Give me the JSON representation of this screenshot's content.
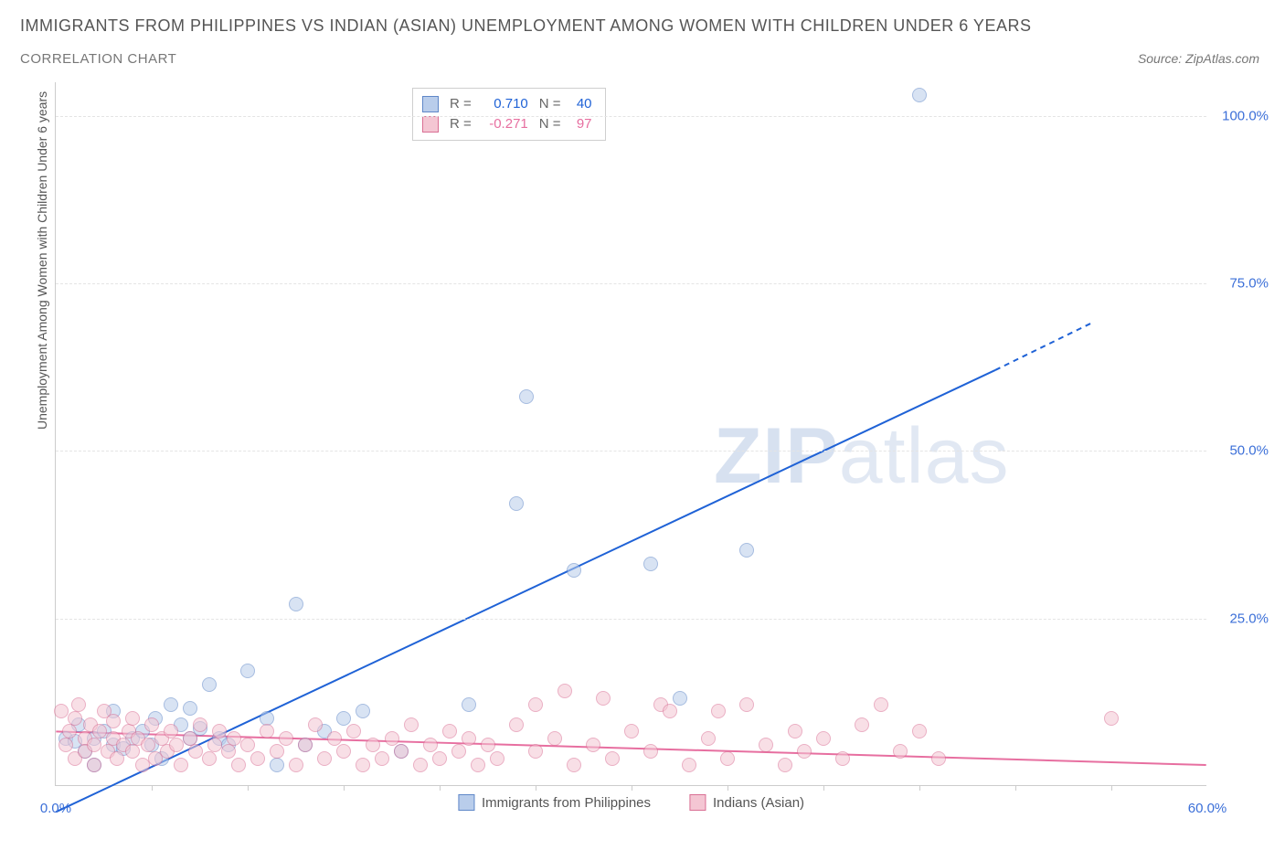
{
  "title": "IMMIGRANTS FROM PHILIPPINES VS INDIAN (ASIAN) UNEMPLOYMENT AMONG WOMEN WITH CHILDREN UNDER 6 YEARS",
  "subtitle": "CORRELATION CHART",
  "source": "Source: ZipAtlas.com",
  "yaxis_label": "Unemployment Among Women with Children Under 6 years",
  "watermark": {
    "part1": "ZIP",
    "part2": "atlas"
  },
  "chart": {
    "type": "scatter",
    "xlim": [
      0,
      60
    ],
    "ylim": [
      0,
      105
    ],
    "x_ticks": [
      0,
      60
    ],
    "x_tick_labels": [
      "0.0%",
      "60.0%"
    ],
    "x_minor_ticks": [
      5,
      10,
      15,
      20,
      25,
      30,
      35,
      40,
      45,
      50,
      55
    ],
    "y_ticks": [
      25,
      50,
      75,
      100
    ],
    "y_tick_labels": [
      "25.0%",
      "50.0%",
      "75.0%",
      "100.0%"
    ],
    "grid_color": "#e4e4e4",
    "axis_color": "#cccccc",
    "background_color": "#ffffff",
    "tick_label_color": "#3b6fd8",
    "marker_radius": 8,
    "marker_stroke_width": 1.2,
    "series": [
      {
        "id": "philippines",
        "label": "Immigrants from Philippines",
        "fill": "#b9cdeb",
        "stroke": "#5f87c8",
        "fill_opacity": 0.55,
        "stats": {
          "R": "0.710",
          "N": "40"
        },
        "trend": {
          "color": "#1f62d6",
          "width": 2,
          "x1": 0,
          "y1": -4,
          "x2": 49,
          "y2": 62,
          "dash_from_x": 49,
          "x3": 54,
          "y3": 69
        },
        "points": [
          [
            0.5,
            7
          ],
          [
            1,
            6.5
          ],
          [
            1.2,
            9
          ],
          [
            1.5,
            5
          ],
          [
            2,
            7
          ],
          [
            2,
            3
          ],
          [
            2.5,
            8
          ],
          [
            3,
            11
          ],
          [
            3,
            6
          ],
          [
            3.5,
            5.5
          ],
          [
            4,
            7
          ],
          [
            4.5,
            8
          ],
          [
            5,
            6
          ],
          [
            5.2,
            10
          ],
          [
            5.5,
            4
          ],
          [
            6,
            12
          ],
          [
            6.5,
            9
          ],
          [
            7,
            7
          ],
          [
            7,
            11.5
          ],
          [
            7.5,
            8.5
          ],
          [
            8,
            15
          ],
          [
            8.5,
            7
          ],
          [
            9,
            6
          ],
          [
            10,
            17
          ],
          [
            11,
            10
          ],
          [
            11.5,
            3
          ],
          [
            12.5,
            27
          ],
          [
            13,
            6
          ],
          [
            14,
            8
          ],
          [
            15,
            10
          ],
          [
            16,
            11
          ],
          [
            18,
            5
          ],
          [
            21.5,
            12
          ],
          [
            24,
            42
          ],
          [
            24.5,
            58
          ],
          [
            27,
            32
          ],
          [
            31,
            33
          ],
          [
            32.5,
            13
          ],
          [
            36,
            35
          ],
          [
            45,
            103
          ]
        ]
      },
      {
        "id": "indians",
        "label": "Indians (Asian)",
        "fill": "#f4c6d3",
        "stroke": "#d96f94",
        "fill_opacity": 0.55,
        "stats": {
          "R": "-0.271",
          "N": "97"
        },
        "trend": {
          "color": "#e76fa0",
          "width": 2,
          "x1": 0,
          "y1": 8,
          "x2": 60,
          "y2": 3
        },
        "points": [
          [
            0.3,
            11
          ],
          [
            0.5,
            6
          ],
          [
            0.7,
            8
          ],
          [
            1,
            10
          ],
          [
            1,
            4
          ],
          [
            1.2,
            12
          ],
          [
            1.5,
            7
          ],
          [
            1.5,
            5
          ],
          [
            1.8,
            9
          ],
          [
            2,
            6
          ],
          [
            2,
            3
          ],
          [
            2.3,
            8
          ],
          [
            2.5,
            11
          ],
          [
            2.7,
            5
          ],
          [
            3,
            7
          ],
          [
            3,
            9.5
          ],
          [
            3.2,
            4
          ],
          [
            3.5,
            6
          ],
          [
            3.8,
            8
          ],
          [
            4,
            5
          ],
          [
            4,
            10
          ],
          [
            4.3,
            7
          ],
          [
            4.5,
            3
          ],
          [
            4.8,
            6
          ],
          [
            5,
            9
          ],
          [
            5.2,
            4
          ],
          [
            5.5,
            7
          ],
          [
            5.8,
            5
          ],
          [
            6,
            8
          ],
          [
            6.3,
            6
          ],
          [
            6.5,
            3
          ],
          [
            7,
            7
          ],
          [
            7.3,
            5
          ],
          [
            7.5,
            9
          ],
          [
            8,
            4
          ],
          [
            8.3,
            6
          ],
          [
            8.5,
            8
          ],
          [
            9,
            5
          ],
          [
            9.3,
            7
          ],
          [
            9.5,
            3
          ],
          [
            10,
            6
          ],
          [
            10.5,
            4
          ],
          [
            11,
            8
          ],
          [
            11.5,
            5
          ],
          [
            12,
            7
          ],
          [
            12.5,
            3
          ],
          [
            13,
            6
          ],
          [
            13.5,
            9
          ],
          [
            14,
            4
          ],
          [
            14.5,
            7
          ],
          [
            15,
            5
          ],
          [
            15.5,
            8
          ],
          [
            16,
            3
          ],
          [
            16.5,
            6
          ],
          [
            17,
            4
          ],
          [
            17.5,
            7
          ],
          [
            18,
            5
          ],
          [
            18.5,
            9
          ],
          [
            19,
            3
          ],
          [
            19.5,
            6
          ],
          [
            20,
            4
          ],
          [
            20.5,
            8
          ],
          [
            21,
            5
          ],
          [
            21.5,
            7
          ],
          [
            22,
            3
          ],
          [
            22.5,
            6
          ],
          [
            23,
            4
          ],
          [
            24,
            9
          ],
          [
            25,
            5
          ],
          [
            26,
            7
          ],
          [
            26.5,
            14
          ],
          [
            27,
            3
          ],
          [
            28,
            6
          ],
          [
            28.5,
            13
          ],
          [
            29,
            4
          ],
          [
            30,
            8
          ],
          [
            31,
            5
          ],
          [
            31.5,
            12
          ],
          [
            32,
            11
          ],
          [
            33,
            3
          ],
          [
            34,
            7
          ],
          [
            34.5,
            11
          ],
          [
            35,
            4
          ],
          [
            36,
            12
          ],
          [
            37,
            6
          ],
          [
            38,
            3
          ],
          [
            38.5,
            8
          ],
          [
            39,
            5
          ],
          [
            40,
            7
          ],
          [
            41,
            4
          ],
          [
            42,
            9
          ],
          [
            43,
            12
          ],
          [
            44,
            5
          ],
          [
            45,
            8
          ],
          [
            46,
            4
          ],
          [
            55,
            10
          ],
          [
            25,
            12
          ]
        ]
      }
    ]
  },
  "stats_box": {
    "r_label": "R =",
    "n_label": "N ="
  }
}
